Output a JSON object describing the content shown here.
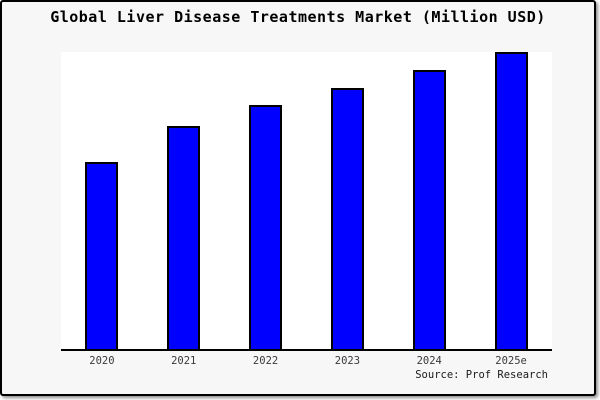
{
  "page": {
    "background": "#f7f7f7",
    "border_color": "#000000",
    "text_color": "#000000"
  },
  "chart_data": {
    "type": "bar",
    "title": "Global Liver Disease Treatments Market (Million USD)",
    "categories": [
      "2020",
      "2021",
      "2022",
      "2023",
      "2024",
      "2025e"
    ],
    "values": [
      63,
      75,
      82,
      88,
      94,
      100
    ],
    "value_scale": "relative index estimated from bar heights; no y-axis labels shown; 2025e = 100",
    "xlabel": "",
    "ylabel": "",
    "ylim": [
      0,
      100
    ],
    "grid": false,
    "legend": null,
    "bar_color": "#0000ff",
    "bar_border_color": "#000000",
    "plot_background": "#ffffff",
    "axis_color": "#000000",
    "source": "Source: Prof Research"
  }
}
